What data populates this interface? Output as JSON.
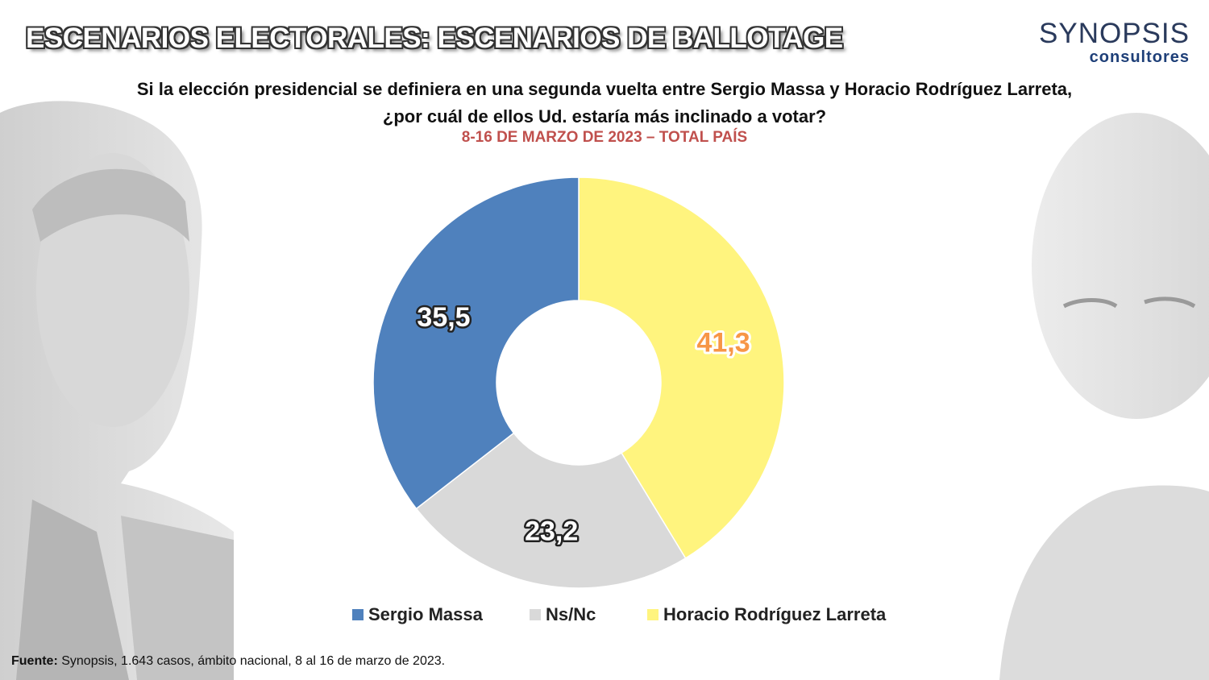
{
  "header": {
    "title": "ESCENARIOS ELECTORALES: ESCENARIOS DE BALLOTAGE",
    "logo_top": "SYNOPSIS",
    "logo_bottom": "consultores",
    "question_line1": "Si la elección presidencial se definiera en una segunda vuelta entre Sergio Massa y Horacio Rodríguez Larreta,",
    "question_line2": "¿por cuál de ellos Ud. estaría más inclinado a votar?",
    "subtitle": "8-16 DE MARZO DE 2023 – TOTAL PAÍS"
  },
  "chart_data": {
    "type": "pie",
    "donut": true,
    "categories": [
      "Horacio Rodríguez Larreta",
      "Ns/Nc",
      "Sergio Massa"
    ],
    "values": [
      41.3,
      23.2,
      35.5
    ],
    "value_labels": [
      "41,3",
      "23,2",
      "35,5"
    ],
    "colors": [
      "#FFF47E",
      "#D9D9D9",
      "#4F81BD"
    ],
    "label_colors": [
      "#F79646",
      "#FFFFFF",
      "#FFFFFF"
    ],
    "start_angle_deg": 0,
    "direction": "clockwise",
    "legend_order": [
      "Sergio Massa",
      "Ns/Nc",
      "Horacio Rodríguez Larreta"
    ],
    "legend_placement": "bottom"
  },
  "footer": {
    "source_label": "Fuente:",
    "source_text": "Synopsis, 1.643 casos, ámbito nacional, 8 al 16 de marzo de 2023."
  }
}
